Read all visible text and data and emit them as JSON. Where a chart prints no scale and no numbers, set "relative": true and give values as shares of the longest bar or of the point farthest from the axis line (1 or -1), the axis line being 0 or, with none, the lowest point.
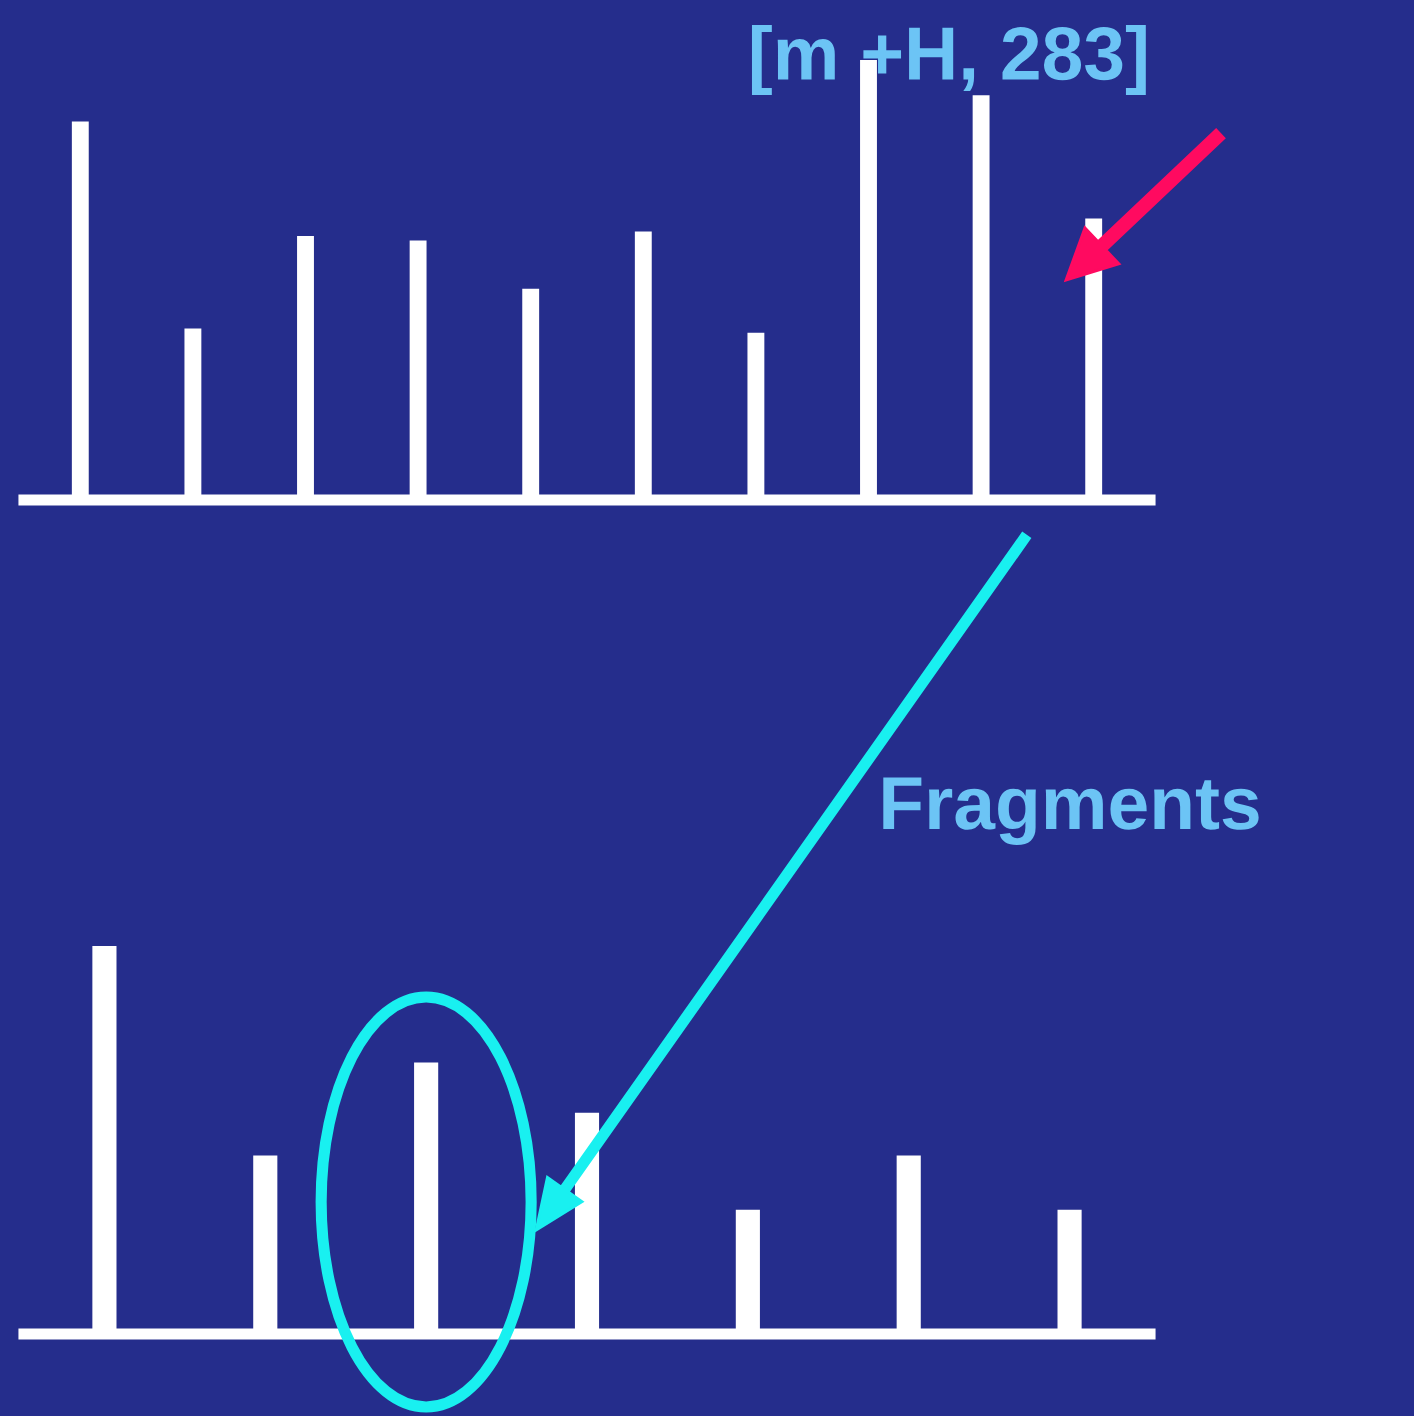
{
  "chart_data": [
    {
      "type": "bar",
      "relative": true,
      "color": "#ffffff",
      "tick_labels": false,
      "categories": [
        null,
        null,
        null,
        null,
        null,
        null,
        null,
        null,
        null,
        null
      ],
      "values": [
        0.86,
        0.39,
        0.6,
        0.59,
        0.48,
        0.61,
        0.38,
        1,
        0.92,
        0.64
      ],
      "annotations": [
        "[m +H, 283]"
      ]
    },
    {
      "type": "bar",
      "relative": true,
      "color": "#ffffff",
      "tick_labels": false,
      "categories": [
        null,
        null,
        null,
        null,
        null,
        null,
        null
      ],
      "values": [
        1,
        0.46,
        0.7,
        0.57,
        0.32,
        0.46,
        0.32
      ],
      "annotations": [
        "Fragments"
      ]
    }
  ]
}
